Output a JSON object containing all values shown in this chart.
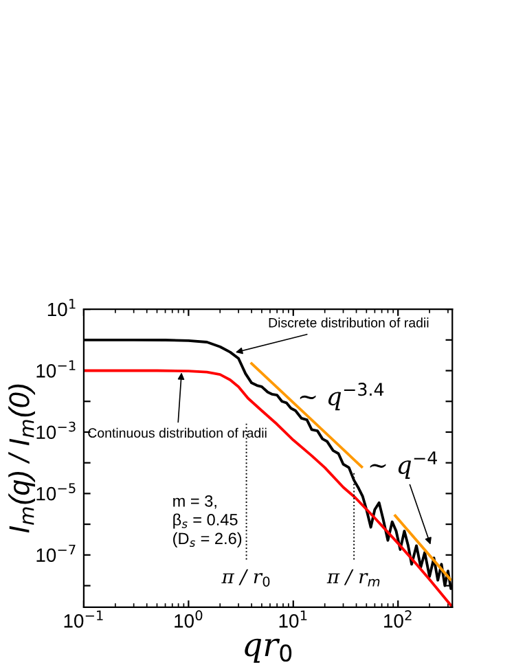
{
  "chart_data": {
    "type": "line",
    "xlabel": "qr$_{0}$",
    "ylabel": "I$_{m}$(q) / I$_{m}$(0)",
    "log": "xy",
    "xlim": [
      0.1,
      330
    ],
    "ylim": [
      2e-09,
      10
    ],
    "xticks": [
      {
        "value": 0.1,
        "label": "10$^{−1}$"
      },
      {
        "value": 1,
        "label": "10$^{0}$"
      },
      {
        "value": 10,
        "label": "10$^{1}$"
      },
      {
        "value": 100,
        "label": "10$^{2}$"
      }
    ],
    "yticks": [
      {
        "value": 10,
        "label": "10$^{1}$"
      },
      {
        "value": 1,
        "label": null
      },
      {
        "value": 0.1,
        "label": "10$^{−1}$"
      },
      {
        "value": 0.01,
        "label": null
      },
      {
        "value": 0.001,
        "label": "10$^{−3}$"
      },
      {
        "value": 0.0001,
        "label": null
      },
      {
        "value": 1e-05,
        "label": "10$^{−5}$"
      },
      {
        "value": 1e-06,
        "label": null
      },
      {
        "value": 1e-07,
        "label": "10$^{−7}$"
      },
      {
        "value": 1e-08,
        "label": null
      }
    ],
    "grid": false,
    "series": [
      {
        "color": "#000000",
        "x": [
          0.1,
          0.3,
          0.6,
          1,
          1.5,
          2,
          2.5,
          3,
          3.5,
          4,
          4.5,
          5,
          5.7,
          6.3,
          7,
          7.8,
          8.6,
          9.5,
          10.5,
          12,
          13.5,
          15,
          17,
          19,
          21,
          24,
          27,
          30,
          34,
          38,
          42,
          46,
          50,
          55,
          60,
          66,
          72,
          80,
          88,
          96,
          105,
          115,
          125,
          135,
          150,
          165,
          180,
          200,
          220,
          240,
          260,
          280,
          300,
          320,
          327
        ],
        "values": [
          1,
          1,
          0.99,
          0.95,
          0.85,
          0.6,
          0.4,
          0.25,
          0.08,
          0.04,
          0.033,
          0.03,
          0.02,
          0.017,
          0.016,
          0.01,
          0.009,
          0.006,
          0.005,
          0.0028,
          0.0025,
          0.0012,
          0.0011,
          0.0006,
          0.0005,
          0.00025,
          0.0002,
          9e-05,
          7e-05,
          2.7e-05,
          1.5e-05,
          8e-06,
          3e-06,
          8e-07,
          3e-06,
          5e-06,
          1.5e-06,
          3e-07,
          1.2e-06,
          6e-07,
          1.5e-07,
          6e-07,
          2e-07,
          5e-08,
          2e-07,
          4e-08,
          1.2e-07,
          2e-08,
          8e-08,
          1.5e-08,
          5e-08,
          1e-08,
          3e-08,
          8e-09,
          9e-09
        ]
      },
      {
        "color": "#ff0000",
        "x": [
          0.1,
          0.5,
          1,
          1.5,
          2,
          2.5,
          3,
          3.7,
          5,
          7,
          10,
          15,
          20,
          30,
          39,
          60,
          100,
          150,
          200,
          300,
          330
        ],
        "values": [
          0.1,
          0.1,
          0.097,
          0.09,
          0.075,
          0.05,
          0.03,
          0.0126,
          0.005,
          0.0018,
          0.00055,
          0.00017,
          7e-05,
          1.6e-05,
          7.4e-06,
          1.6e-06,
          2.4e-07,
          5e-08,
          1.6e-08,
          3e-09,
          2e-09
        ]
      },
      {
        "color": "#ff9900",
        "x": [
          4,
          45
        ],
        "values": [
          0.17,
          7.4e-05
        ]
      },
      {
        "color": "#ff9900",
        "x": [
          94,
          316
        ],
        "values": [
          1.9e-06,
          1.6e-08
        ]
      }
    ],
    "ref_lines": [
      {
        "axis": "x",
        "value": 3.57,
        "label": "π / r$_{0}$",
        "line_style": "dotted",
        "color": "#000000"
      },
      {
        "axis": "x",
        "value": 38,
        "label": "π / r$_{m}$",
        "line_style": "dotted",
        "color": "#000000"
      }
    ],
    "annotations": [
      {
        "text": "Discrete distribution of radii",
        "x": 2.7,
        "y": 0.38
      },
      {
        "text": "Continuous distribution of radii",
        "x": 0.86,
        "y": 0.1
      },
      "~ q$^{−3.4}$",
      {
        "text": "~ q$^{−4}$",
        "x": 207,
        "y": 1.9e-07
      },
      "m = 3,\nβ$_{s}$ = 0.45\n(D$_{s}$ = 2.6)"
    ]
  }
}
